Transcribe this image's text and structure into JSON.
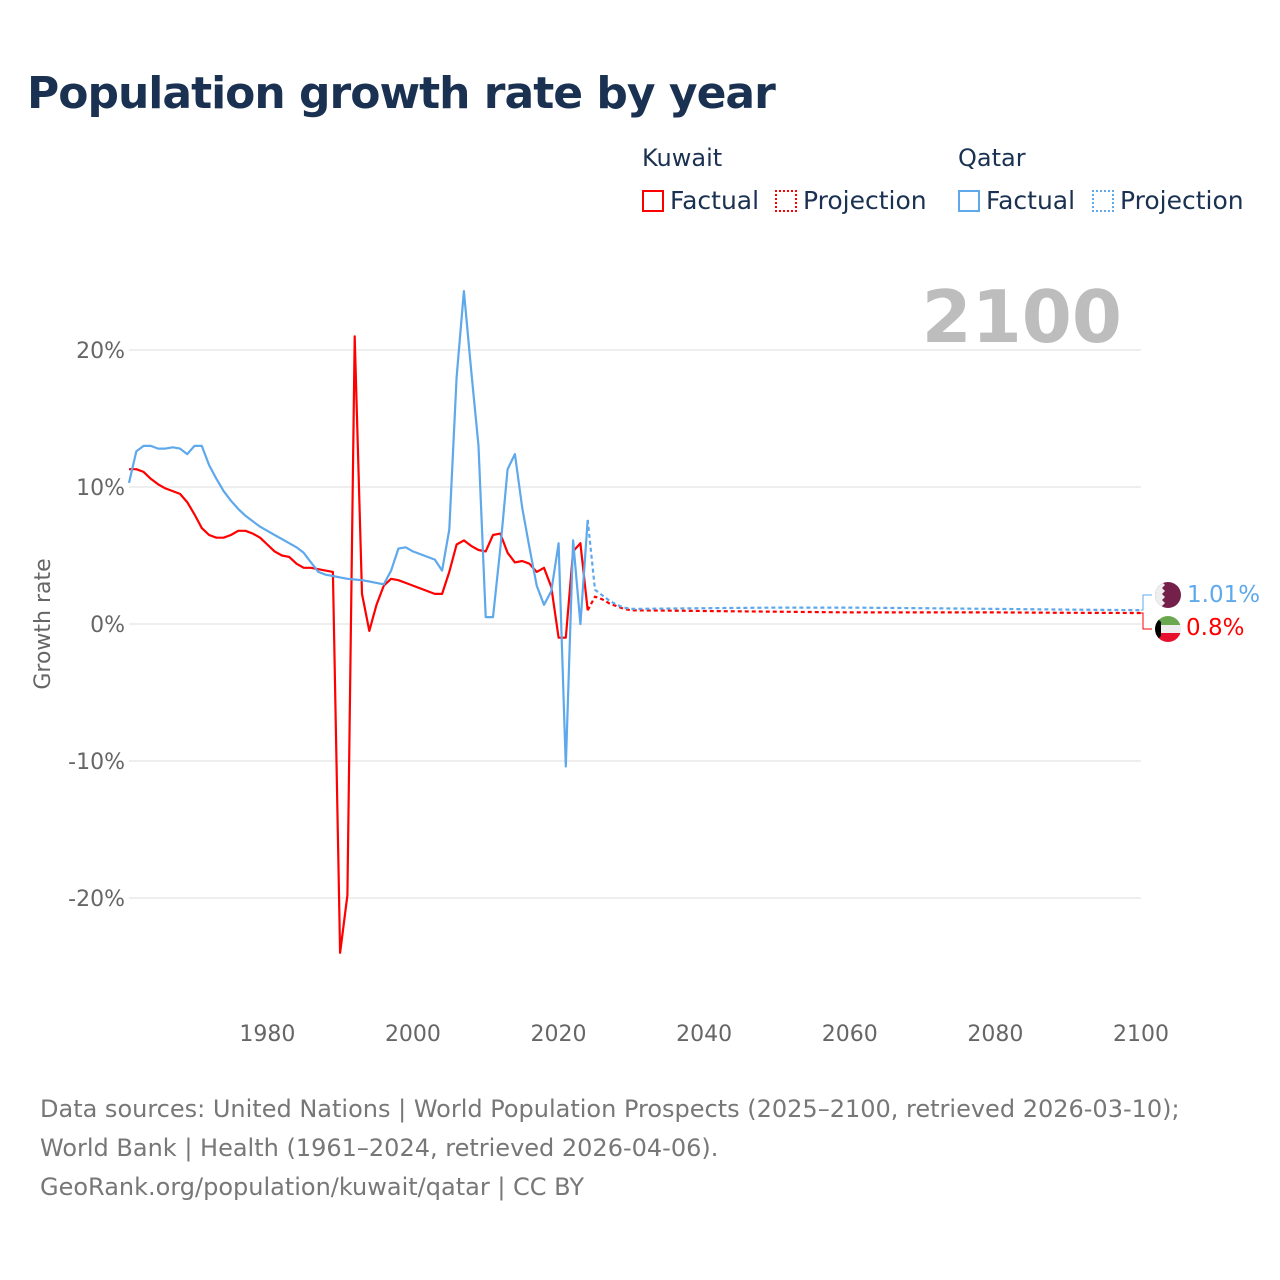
{
  "title": "Population growth rate by year",
  "legend": {
    "kuwait": "Kuwait",
    "qatar": "Qatar",
    "factual": "Factual",
    "projection": "Projection"
  },
  "colors": {
    "kuwait": "#ff0000",
    "qatar": "#5ea8ec"
  },
  "footer": {
    "line1": "Data sources: United Nations | World Population Prospects (2025–2100, retrieved 2026-03-10); World Bank | Health (1961–2024, retrieved 2026-04-06).",
    "line2": "GeoRank.org/population/kuwait/qatar | CC BY"
  },
  "chart_data": {
    "type": "line",
    "title": "Population growth rate by year",
    "ylabel": "Growth rate",
    "xlim": [
      1961,
      2100
    ],
    "ylim": [
      -25,
      25
    ],
    "xticks": [
      1980,
      2000,
      2020,
      2040,
      2060,
      2080,
      2100
    ],
    "yticks": [
      {
        "v": 20,
        "label": "20%"
      },
      {
        "v": 10,
        "label": "10%"
      },
      {
        "v": 0,
        "label": "0%"
      },
      {
        "v": -10,
        "label": "-10%"
      },
      {
        "v": -20,
        "label": "-20%"
      }
    ],
    "year_label": "2100",
    "end_labels": {
      "qatar": "1.01%",
      "kuwait": "0.8%"
    },
    "series": [
      {
        "name": "Kuwait Factual",
        "country": "kuwait",
        "dashed": false,
        "start": 1961,
        "values": [
          11.3,
          11.3,
          11.1,
          10.6,
          10.2,
          9.9,
          9.7,
          9.5,
          8.9,
          8.0,
          7.0,
          6.5,
          6.3,
          6.3,
          6.5,
          6.8,
          6.8,
          6.6,
          6.3,
          5.8,
          5.3,
          5.0,
          4.9,
          4.4,
          4.1,
          4.1,
          4.0,
          3.9,
          3.8,
          -24.0,
          -19.8,
          21.0,
          2.2,
          -0.5,
          1.4,
          2.8,
          3.3,
          3.2,
          3.0,
          2.8,
          2.6,
          2.4,
          2.2,
          2.2,
          3.8,
          5.8,
          6.1,
          5.7,
          5.4,
          5.3,
          6.5,
          6.6,
          5.2,
          4.5,
          4.6,
          4.4,
          3.8,
          4.1,
          2.7,
          -1.0,
          -1.0,
          5.3,
          5.9,
          1.0
        ]
      },
      {
        "name": "Qatar Factual",
        "country": "qatar",
        "dashed": false,
        "start": 1961,
        "values": [
          10.3,
          12.6,
          13.0,
          13.0,
          12.8,
          12.8,
          12.9,
          12.8,
          12.4,
          13.0,
          13.0,
          11.6,
          10.6,
          9.7,
          9.0,
          8.4,
          7.9,
          7.5,
          7.1,
          6.8,
          6.5,
          6.2,
          5.9,
          5.6,
          5.2,
          4.5,
          3.8,
          3.6,
          3.5,
          3.4,
          3.3,
          3.25,
          3.2,
          3.1,
          3.0,
          2.9,
          3.9,
          5.5,
          5.6,
          5.3,
          5.1,
          4.9,
          4.7,
          3.9,
          6.9,
          18.0,
          24.3,
          18.5,
          13.0,
          0.5,
          0.5,
          5.5,
          11.3,
          12.4,
          8.5,
          5.6,
          2.8,
          1.4,
          2.4,
          5.9,
          -10.4,
          6.1,
          0.0,
          7.6
        ]
      },
      {
        "name": "Kuwait Projection",
        "country": "kuwait",
        "dashed": true,
        "x": [
          2024,
          2025,
          2026,
          2027,
          2028,
          2029,
          2030,
          2040,
          2050,
          2060,
          2070,
          2080,
          2090,
          2100
        ],
        "values": [
          1.0,
          2.0,
          1.8,
          1.5,
          1.3,
          1.1,
          1.0,
          0.95,
          0.9,
          0.85,
          0.85,
          0.85,
          0.82,
          0.8
        ]
      },
      {
        "name": "Qatar Projection",
        "country": "qatar",
        "dashed": true,
        "x": [
          2024,
          2025,
          2026,
          2027,
          2028,
          2029,
          2030,
          2040,
          2050,
          2060,
          2070,
          2080,
          2090,
          2100
        ],
        "values": [
          7.6,
          2.5,
          2.1,
          1.7,
          1.4,
          1.2,
          1.1,
          1.15,
          1.2,
          1.2,
          1.15,
          1.1,
          1.05,
          1.01
        ]
      }
    ]
  }
}
